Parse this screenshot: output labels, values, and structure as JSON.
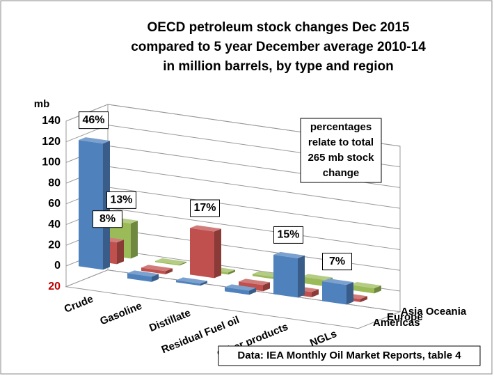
{
  "chart_data": {
    "type": "bar3d",
    "title": [
      "OECD petroleum stock changes Dec 2015",
      "compared to 5 year December average 2010-14",
      "in million barrels, by type and region"
    ],
    "y_label": "mb",
    "categories": [
      "Crude",
      "Gasoline",
      "Distillate",
      "Residual Fuel oil",
      "Other products",
      "NGLs"
    ],
    "series": [
      {
        "name": "Americas",
        "color": "#4f81bd",
        "values": [
          122,
          -5,
          -2,
          -4,
          38,
          19
        ],
        "share_labels": [
          "46%",
          null,
          null,
          null,
          "15%",
          "7%"
        ]
      },
      {
        "name": "Europe",
        "color": "#c0504d",
        "values": [
          21,
          -3,
          45,
          -6,
          -5,
          -3
        ],
        "share_labels": [
          "8%",
          null,
          "17%",
          null,
          null,
          null
        ]
      },
      {
        "name": "Asia Oceania",
        "color": "#9bbb59",
        "values": [
          34,
          1,
          -2,
          2,
          6,
          5
        ],
        "share_labels": [
          "13%",
          null,
          null,
          null,
          null,
          null
        ]
      }
    ],
    "ylim": [
      -20,
      140
    ],
    "yticks": [
      {
        "value": -20,
        "label": "20"
      },
      0,
      20,
      40,
      60,
      80,
      100,
      120,
      140
    ],
    "negative_tick_color": "#c00000",
    "note": [
      "percentages",
      "relate to total",
      "265 mb stock",
      "change"
    ],
    "source": "Data: IEA Monthly Oil Market Reports, table 4"
  }
}
